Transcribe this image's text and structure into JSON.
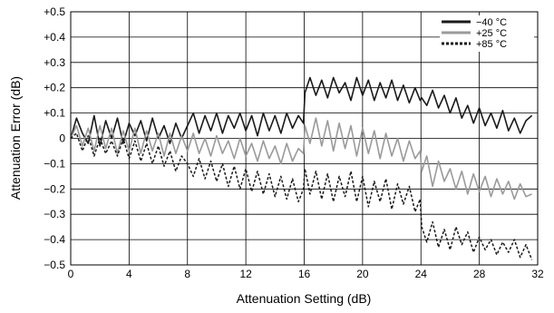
{
  "chart_data": {
    "type": "line",
    "xlabel": "Attenuation Setting (dB)",
    "ylabel": "Attenuation Error (dB)",
    "xlim": [
      0,
      32
    ],
    "ylim": [
      -0.5,
      0.5
    ],
    "x_ticks": [
      0,
      4,
      8,
      12,
      16,
      20,
      24,
      28,
      32
    ],
    "x_tick_labels": [
      "0",
      "4",
      "8",
      "12",
      "16",
      "20",
      "24",
      "28",
      "32"
    ],
    "y_ticks": [
      0.5,
      0.4,
      0.3,
      0.2,
      0.1,
      0,
      -0.1,
      -0.2,
      -0.3,
      -0.4,
      -0.5
    ],
    "y_tick_labels": [
      "+0.5",
      "+0.4",
      "+0.3",
      "+0.2",
      "+0.1",
      "0",
      "−0.1",
      "−0.2",
      "−0.3",
      "−0.4",
      "−0.5"
    ],
    "grid": true,
    "legend_position": "top-right",
    "series": [
      {
        "name": "−40 °C",
        "color": "#1a1a1a",
        "style": "solid",
        "x": [
          0.0,
          0.4,
          0.8,
          1.2,
          1.6,
          2.0,
          2.4,
          2.8,
          3.2,
          3.6,
          4.0,
          4.4,
          4.8,
          5.2,
          5.6,
          6.0,
          6.4,
          6.8,
          7.2,
          7.6,
          8.0,
          8.4,
          8.8,
          9.2,
          9.6,
          10.0,
          10.4,
          10.8,
          11.2,
          11.6,
          12.0,
          12.4,
          12.8,
          13.2,
          13.6,
          14.0,
          14.4,
          14.8,
          15.2,
          15.6,
          15.95,
          16.05,
          16.4,
          16.8,
          17.2,
          17.6,
          18.0,
          18.4,
          18.8,
          19.2,
          19.6,
          20.0,
          20.4,
          20.8,
          21.2,
          21.6,
          22.0,
          22.4,
          22.8,
          23.2,
          23.6,
          23.95,
          24.05,
          24.4,
          24.8,
          25.2,
          25.6,
          26.0,
          26.4,
          26.8,
          27.2,
          27.6,
          28.0,
          28.4,
          28.8,
          29.2,
          29.6,
          30.0,
          30.4,
          30.8,
          31.2,
          31.6
        ],
        "y": [
          0.0,
          0.08,
          0.02,
          -0.02,
          0.09,
          -0.03,
          0.07,
          0.0,
          0.08,
          -0.02,
          0.06,
          0.01,
          0.07,
          -0.01,
          0.08,
          0.0,
          0.05,
          -0.02,
          0.06,
          0.0,
          0.05,
          0.1,
          0.02,
          0.09,
          0.03,
          0.1,
          0.02,
          0.09,
          0.04,
          0.1,
          0.03,
          0.09,
          0.01,
          0.1,
          0.03,
          0.09,
          0.02,
          0.1,
          0.04,
          0.09,
          0.06,
          0.18,
          0.24,
          0.17,
          0.23,
          0.16,
          0.24,
          0.18,
          0.22,
          0.15,
          0.24,
          0.17,
          0.23,
          0.15,
          0.22,
          0.16,
          0.23,
          0.15,
          0.21,
          0.14,
          0.2,
          0.15,
          0.16,
          0.13,
          0.19,
          0.12,
          0.17,
          0.1,
          0.16,
          0.08,
          0.13,
          0.06,
          0.12,
          0.05,
          0.1,
          0.04,
          0.11,
          0.03,
          0.08,
          0.02,
          0.07,
          0.09
        ]
      },
      {
        "name": "+25 °C",
        "color": "#9a9a9a",
        "style": "solid",
        "x": [
          0.0,
          0.4,
          0.8,
          1.2,
          1.6,
          2.0,
          2.4,
          2.8,
          3.2,
          3.6,
          4.0,
          4.4,
          4.8,
          5.2,
          5.6,
          6.0,
          6.4,
          6.8,
          7.2,
          7.6,
          8.0,
          8.4,
          8.8,
          9.2,
          9.6,
          10.0,
          10.4,
          10.8,
          11.2,
          11.6,
          12.0,
          12.4,
          12.8,
          13.2,
          13.6,
          14.0,
          14.4,
          14.8,
          15.2,
          15.6,
          15.95,
          16.05,
          16.4,
          16.8,
          17.2,
          17.6,
          18.0,
          18.4,
          18.8,
          19.2,
          19.6,
          20.0,
          20.4,
          20.8,
          21.2,
          21.6,
          22.0,
          22.4,
          22.8,
          23.2,
          23.6,
          23.95,
          24.05,
          24.4,
          24.8,
          25.2,
          25.6,
          26.0,
          26.4,
          26.8,
          27.2,
          27.6,
          28.0,
          28.4,
          28.8,
          29.2,
          29.6,
          30.0,
          30.4,
          30.8,
          31.2,
          31.6
        ],
        "y": [
          0.0,
          0.05,
          -0.03,
          0.04,
          -0.05,
          0.05,
          -0.04,
          0.04,
          -0.06,
          0.03,
          -0.05,
          0.04,
          -0.06,
          0.03,
          -0.05,
          0.02,
          -0.07,
          0.02,
          -0.06,
          0.01,
          -0.05,
          0.02,
          -0.06,
          0.0,
          -0.07,
          0.01,
          -0.06,
          -0.01,
          -0.08,
          0.0,
          -0.07,
          -0.02,
          -0.09,
          -0.01,
          -0.08,
          -0.03,
          -0.1,
          -0.02,
          -0.09,
          -0.04,
          -0.06,
          0.05,
          -0.02,
          0.08,
          -0.03,
          0.07,
          -0.05,
          0.06,
          -0.04,
          0.05,
          -0.07,
          0.04,
          -0.06,
          0.03,
          -0.08,
          0.02,
          -0.07,
          0.0,
          -0.09,
          -0.01,
          -0.08,
          -0.05,
          -0.13,
          -0.07,
          -0.19,
          -0.09,
          -0.17,
          -0.12,
          -0.2,
          -0.13,
          -0.22,
          -0.14,
          -0.21,
          -0.15,
          -0.23,
          -0.16,
          -0.22,
          -0.17,
          -0.24,
          -0.18,
          -0.23,
          -0.22
        ]
      },
      {
        "name": "+85 °C",
        "color": "#1a1a1a",
        "style": "dashed",
        "x": [
          0.0,
          0.4,
          0.8,
          1.2,
          1.6,
          2.0,
          2.4,
          2.8,
          3.2,
          3.6,
          4.0,
          4.4,
          4.8,
          5.2,
          5.6,
          6.0,
          6.4,
          6.8,
          7.2,
          7.6,
          8.0,
          8.4,
          8.8,
          9.2,
          9.6,
          10.0,
          10.4,
          10.8,
          11.2,
          11.6,
          12.0,
          12.4,
          12.8,
          13.2,
          13.6,
          14.0,
          14.4,
          14.8,
          15.2,
          15.6,
          15.95,
          16.05,
          16.4,
          16.8,
          17.2,
          17.6,
          18.0,
          18.4,
          18.8,
          19.2,
          19.6,
          20.0,
          20.4,
          20.8,
          21.2,
          21.6,
          22.0,
          22.4,
          22.8,
          23.2,
          23.6,
          23.95,
          24.05,
          24.4,
          24.8,
          25.2,
          25.6,
          26.0,
          26.4,
          26.8,
          27.2,
          27.6,
          28.0,
          28.4,
          28.8,
          29.2,
          29.6,
          30.0,
          30.4,
          30.8,
          31.2,
          31.6
        ],
        "y": [
          0.0,
          0.02,
          -0.05,
          0.01,
          -0.07,
          0.0,
          -0.06,
          -0.01,
          -0.07,
          0.0,
          -0.08,
          -0.01,
          -0.09,
          -0.02,
          -0.1,
          -0.03,
          -0.11,
          -0.05,
          -0.13,
          -0.07,
          -0.1,
          -0.15,
          -0.08,
          -0.16,
          -0.09,
          -0.17,
          -0.1,
          -0.19,
          -0.11,
          -0.2,
          -0.12,
          -0.21,
          -0.13,
          -0.22,
          -0.14,
          -0.23,
          -0.15,
          -0.24,
          -0.16,
          -0.25,
          -0.2,
          -0.12,
          -0.22,
          -0.13,
          -0.24,
          -0.14,
          -0.25,
          -0.15,
          -0.23,
          -0.13,
          -0.25,
          -0.15,
          -0.27,
          -0.17,
          -0.25,
          -0.16,
          -0.28,
          -0.18,
          -0.26,
          -0.19,
          -0.29,
          -0.24,
          -0.35,
          -0.41,
          -0.33,
          -0.43,
          -0.36,
          -0.44,
          -0.35,
          -0.42,
          -0.37,
          -0.45,
          -0.39,
          -0.44,
          -0.4,
          -0.46,
          -0.41,
          -0.45,
          -0.4,
          -0.47,
          -0.42,
          -0.48
        ]
      }
    ]
  }
}
